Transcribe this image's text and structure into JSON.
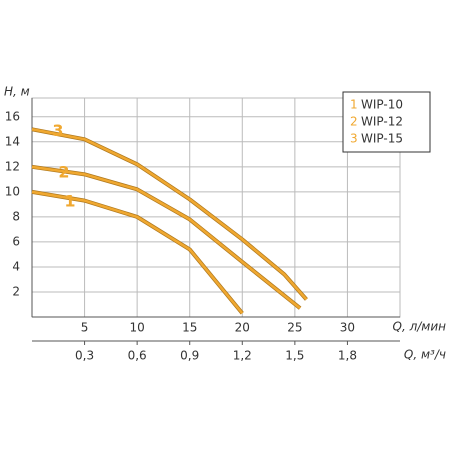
{
  "chart_data": {
    "type": "line",
    "y_label": "H, м",
    "x_label": "Q, л/мин",
    "x2_label": "Q, м³/ч",
    "xlim": [
      0,
      35
    ],
    "ylim": [
      0,
      17.5
    ],
    "xticks": [
      5,
      10,
      15,
      20,
      25,
      30
    ],
    "yticks": [
      2,
      4,
      6,
      8,
      10,
      12,
      14,
      16
    ],
    "x2lim": [
      0,
      2.1
    ],
    "x2ticks": [
      {
        "value": 0.3,
        "label": "0,3"
      },
      {
        "value": 0.6,
        "label": "0,6"
      },
      {
        "value": 0.9,
        "label": "0,9"
      },
      {
        "value": 1.2,
        "label": "1,2"
      },
      {
        "value": 1.5,
        "label": "1,5"
      },
      {
        "value": 1.8,
        "label": "1,8"
      }
    ],
    "grid": true,
    "legend": "top-right",
    "series": [
      {
        "name": "WIP-10",
        "label": "1",
        "color": "#f0a830",
        "x": [
          0,
          5,
          10,
          15,
          20
        ],
        "values": [
          10,
          9.3,
          8,
          5.4,
          0.3
        ]
      },
      {
        "name": "WIP-12",
        "label": "2",
        "color": "#f0a830",
        "x": [
          0,
          5,
          10,
          15,
          20,
          25.5
        ],
        "values": [
          12,
          11.4,
          10.2,
          7.8,
          4.4,
          0.7
        ]
      },
      {
        "name": "WIP-15",
        "label": "3",
        "color": "#f0a830",
        "x": [
          0,
          5,
          10,
          15,
          20,
          24,
          26.1
        ],
        "values": [
          15,
          14.2,
          12.2,
          9.4,
          6.2,
          3.4,
          1.4
        ]
      }
    ]
  }
}
